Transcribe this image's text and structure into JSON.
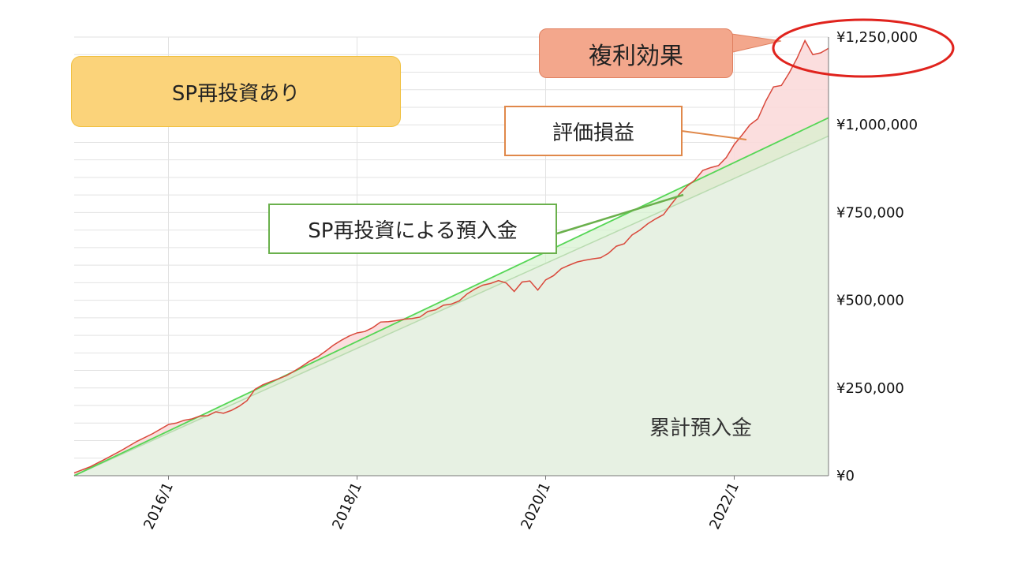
{
  "chart_data": {
    "type": "area",
    "x_tick_labels": [
      "2016/1",
      "2018/1",
      "2020/1",
      "2022/1"
    ],
    "y_tick_labels": [
      "¥0",
      "¥250,000",
      "¥500,000",
      "¥750,000",
      "¥1,000,000",
      "¥1,250,000"
    ],
    "ylim": [
      0,
      1250000
    ],
    "x_range_months": [
      0,
      96
    ],
    "x_tick_months": [
      12,
      36,
      60,
      84
    ],
    "grid": true,
    "series": [
      {
        "name": "累計預入金",
        "color": "#b9dbb0",
        "x": [
          0,
          96
        ],
        "y": [
          0,
          968000
        ]
      },
      {
        "name": "SP再投資による預入金",
        "color": "#55d655",
        "x": [
          0,
          96
        ],
        "y": [
          0,
          1020000
        ]
      },
      {
        "name": "評価損益",
        "color": "#d9483b",
        "x": [
          0,
          2,
          4,
          6,
          8,
          10,
          12,
          13,
          14,
          15,
          16,
          17,
          18,
          19,
          20,
          21,
          22,
          23,
          24,
          25,
          26,
          27,
          28,
          29,
          30,
          31,
          32,
          33,
          34,
          35,
          36,
          37,
          38,
          39,
          40,
          41,
          42,
          43,
          44,
          45,
          46,
          47,
          48,
          49,
          50,
          51,
          52,
          53,
          54,
          55,
          56,
          57,
          58,
          59,
          60,
          61,
          62,
          63,
          64,
          65,
          66,
          67,
          68,
          69,
          70,
          71,
          72,
          73,
          74,
          75,
          76,
          77,
          78,
          79,
          80,
          81,
          82,
          83,
          84,
          85,
          86,
          87,
          88,
          89,
          90,
          91,
          92,
          93,
          94,
          95,
          96
        ],
        "y": [
          8000,
          25000,
          48000,
          72000,
          98000,
          120000,
          146000,
          150000,
          158000,
          162000,
          170000,
          171000,
          182000,
          178000,
          186000,
          198000,
          214000,
          246000,
          259000,
          268000,
          276000,
          285000,
          298000,
          312000,
          327000,
          339000,
          355000,
          372000,
          386000,
          398000,
          407000,
          411000,
          422000,
          438000,
          439000,
          442000,
          446000,
          448000,
          452000,
          468000,
          473000,
          486000,
          489000,
          498000,
          518000,
          532000,
          543000,
          548000,
          556000,
          549000,
          525000,
          552000,
          555000,
          529000,
          558000,
          570000,
          590000,
          600000,
          609000,
          614000,
          618000,
          621000,
          634000,
          654000,
          661000,
          686000,
          700000,
          718000,
          732000,
          744000,
          774000,
          802000,
          825000,
          843000,
          870000,
          878000,
          884000,
          907000,
          944000,
          971000,
          1000000,
          1017000,
          1067000,
          1108000,
          1112000,
          1148000,
          1190000,
          1240000,
          1200000,
          1205000,
          1218000
        ]
      }
    ]
  },
  "callouts": {
    "sp_reinvest": "SP再投資あり",
    "compound": "複利効果",
    "profit_loss": "評価損益",
    "reinvest_deposit": "SP再投資による預入金",
    "cumulative": "累計預入金"
  }
}
